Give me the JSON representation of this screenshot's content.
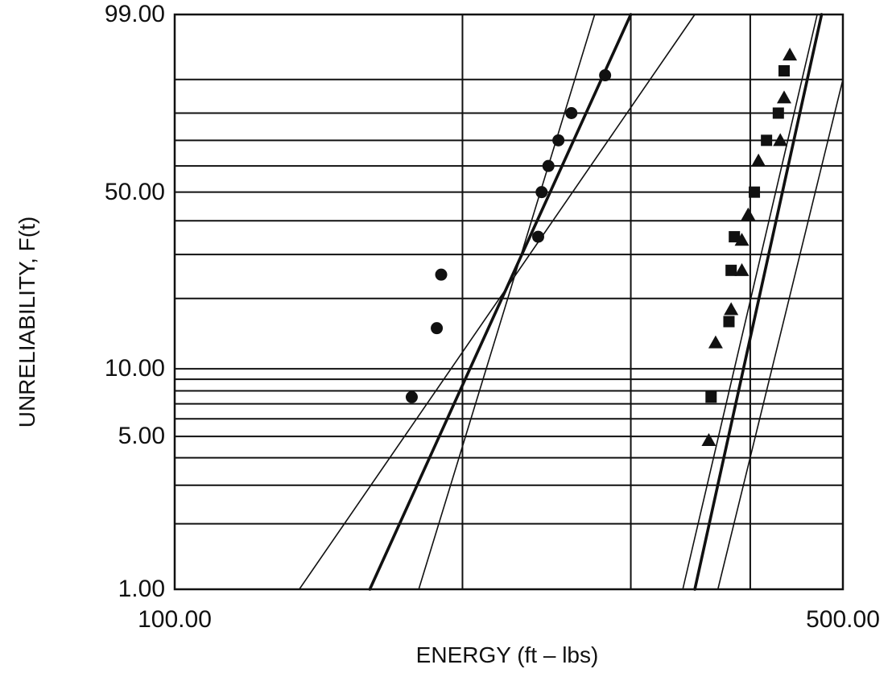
{
  "chart_data": {
    "type": "scatter",
    "title": "",
    "xlabel": "ENERGY  (ft – lbs)",
    "ylabel": "UNRELIABILITY, F(t)",
    "x_scale": "log",
    "y_scale": "weibull-probability",
    "xlim": [
      100,
      500
    ],
    "ylim": [
      1,
      99
    ],
    "x_ticks": [
      "100.00",
      "500.00"
    ],
    "y_ticks": [
      "99.00",
      "50.00",
      "10.00",
      "5.00",
      "1.00"
    ],
    "grid": true,
    "series": [
      {
        "marker": "circle",
        "points": [
          [
            177,
            7.5
          ],
          [
            188,
            15
          ],
          [
            190,
            25
          ],
          [
            240,
            35
          ],
          [
            242,
            50
          ],
          [
            246,
            60
          ],
          [
            252,
            70
          ],
          [
            260,
            80
          ],
          [
            282,
            91
          ]
        ]
      },
      {
        "marker": "square",
        "points": [
          [
            364,
            7.5
          ],
          [
            380,
            16
          ],
          [
            382,
            26
          ],
          [
            385,
            35
          ],
          [
            404,
            50
          ],
          [
            416,
            70
          ],
          [
            428,
            80
          ],
          [
            434,
            92
          ]
        ]
      },
      {
        "marker": "triangle",
        "points": [
          [
            362,
            4.8
          ],
          [
            368,
            13
          ],
          [
            382,
            18
          ],
          [
            392,
            26
          ],
          [
            392,
            34
          ],
          [
            398,
            42
          ],
          [
            408,
            62
          ],
          [
            430,
            70
          ],
          [
            434,
            85
          ],
          [
            440,
            95
          ]
        ]
      }
    ],
    "fit_lines": [
      {
        "style": "bold",
        "points": [
          [
            160,
            1
          ],
          [
            300,
            99
          ]
        ]
      },
      {
        "style": "thin",
        "points": [
          [
            135,
            1
          ],
          [
            350,
            99
          ]
        ]
      },
      {
        "style": "thin",
        "points": [
          [
            180,
            1
          ],
          [
            275,
            99
          ]
        ]
      },
      {
        "style": "bold",
        "points": [
          [
            350,
            1
          ],
          [
            475,
            99
          ]
        ]
      },
      {
        "style": "thin",
        "points": [
          [
            340,
            1
          ],
          [
            470,
            99
          ]
        ]
      },
      {
        "style": "thin",
        "points": [
          [
            370,
            1
          ],
          [
            500,
            90
          ]
        ]
      }
    ]
  }
}
